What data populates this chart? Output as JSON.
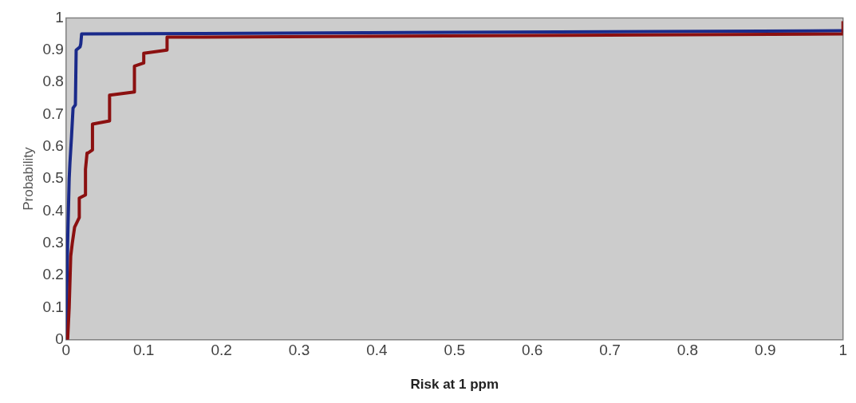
{
  "chart_data": {
    "type": "line",
    "xlabel": "Risk at 1 ppm",
    "ylabel": "Probability",
    "xlim": [
      0,
      1
    ],
    "ylim": [
      0,
      1
    ],
    "xticks": [
      0,
      0.1,
      0.2,
      0.3,
      0.4,
      0.5,
      0.6,
      0.7,
      0.8,
      0.9,
      1
    ],
    "yticks": [
      0,
      0.1,
      0.2,
      0.3,
      0.4,
      0.5,
      0.6,
      0.7,
      0.8,
      0.9,
      1
    ],
    "grid": false,
    "legend": false,
    "marker": "none",
    "line_style": "solid",
    "series": [
      {
        "color": "#8b1010",
        "x": [
          0.002,
          0.004,
          0.006,
          0.008,
          0.011,
          0.017,
          0.017,
          0.025,
          0.025,
          0.027,
          0.028,
          0.034,
          0.034,
          0.056,
          0.056,
          0.088,
          0.088,
          0.1,
          0.1,
          0.13,
          0.13,
          1,
          1
        ],
        "values": [
          0,
          0.1,
          0.26,
          0.3,
          0.35,
          0.38,
          0.44,
          0.45,
          0.53,
          0.58,
          0.58,
          0.59,
          0.67,
          0.68,
          0.76,
          0.77,
          0.85,
          0.86,
          0.89,
          0.9,
          0.94,
          0.95,
          0.99
        ]
      },
      {
        "color": "#1a2a8a",
        "x": [
          0,
          0.002,
          0.004,
          0.005,
          0.007,
          0.009,
          0.012,
          0.013,
          0.018,
          0.019,
          0.02,
          1
        ],
        "values": [
          0,
          0.3,
          0.5,
          0.55,
          0.63,
          0.72,
          0.73,
          0.9,
          0.91,
          0.92,
          0.95,
          0.96
        ]
      }
    ]
  }
}
